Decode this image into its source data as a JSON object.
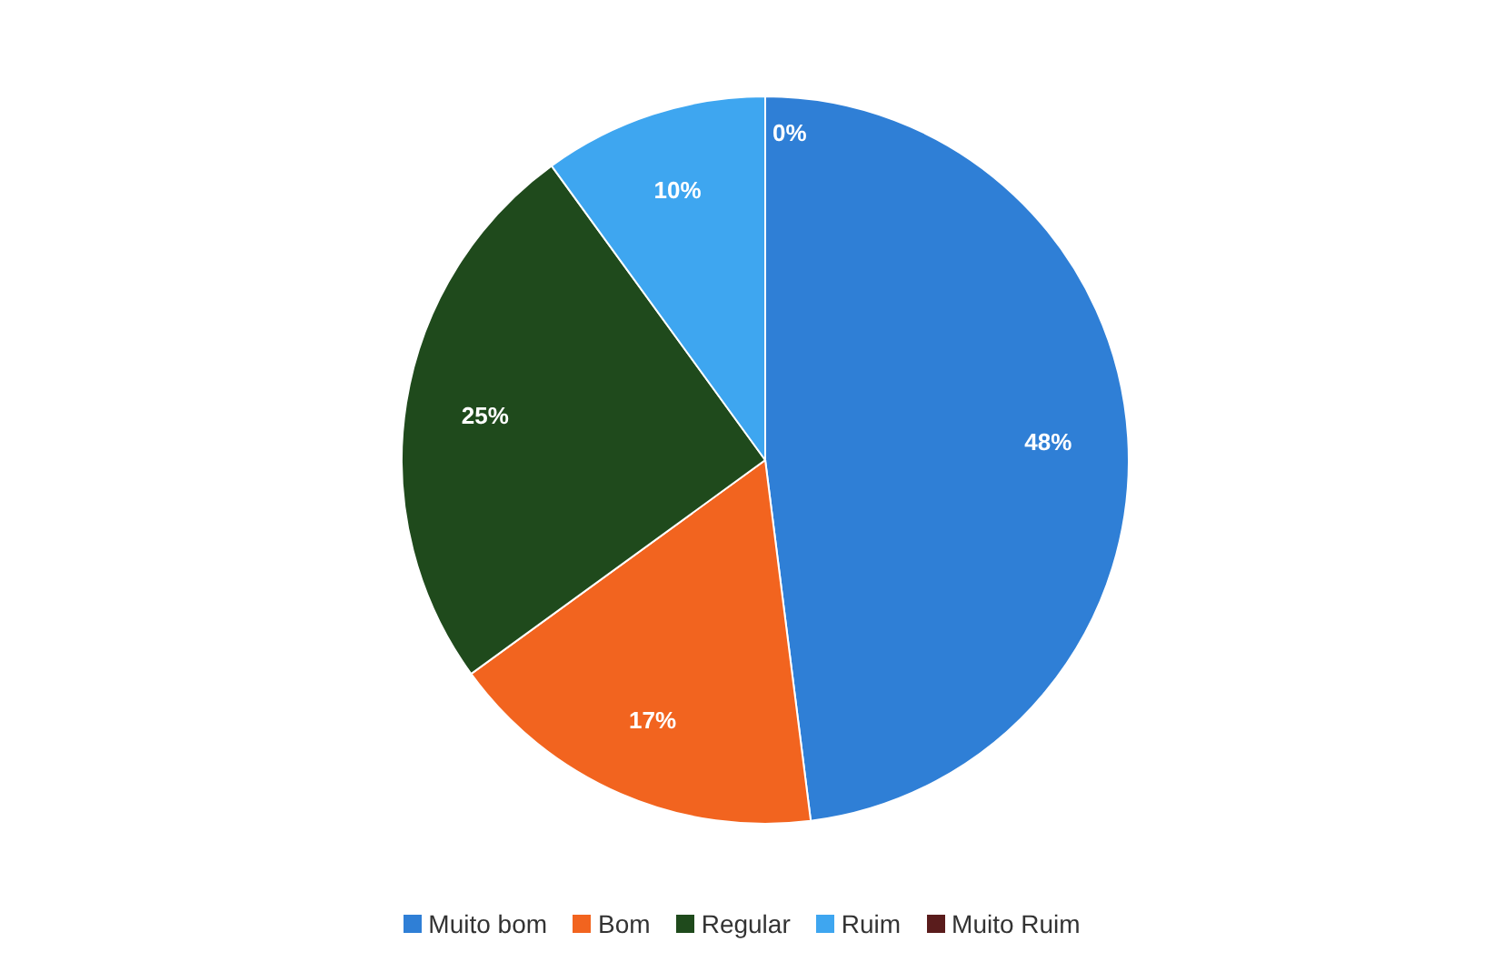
{
  "chart_data": {
    "type": "pie",
    "categories": [
      "Muito bom",
      "Bom",
      "Regular",
      "Ruim",
      "Muito Ruim"
    ],
    "values": [
      48,
      17,
      25,
      10,
      0
    ],
    "colors": [
      "#2f7fd6",
      "#f2641f",
      "#1f4a1c",
      "#3ea6f0",
      "#5a1c1c"
    ],
    "value_labels": [
      "48%",
      "17%",
      "25%",
      "10%",
      "0%"
    ],
    "legend": "bottom"
  }
}
